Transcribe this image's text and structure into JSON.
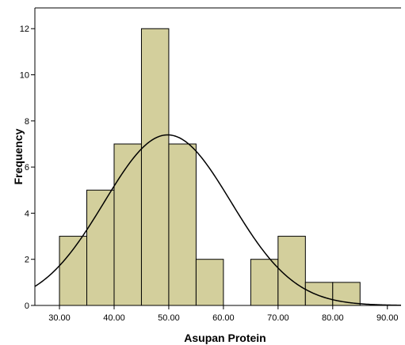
{
  "chart_data": {
    "type": "bar",
    "title": "",
    "xlabel": "Asupan Protein",
    "ylabel": "Frequency",
    "bins": [
      {
        "start": 30,
        "end": 35,
        "count": 3
      },
      {
        "start": 35,
        "end": 40,
        "count": 5
      },
      {
        "start": 40,
        "end": 45,
        "count": 7
      },
      {
        "start": 45,
        "end": 50,
        "count": 12
      },
      {
        "start": 50,
        "end": 55,
        "count": 7
      },
      {
        "start": 55,
        "end": 60,
        "count": 2
      },
      {
        "start": 60,
        "end": 65,
        "count": 0
      },
      {
        "start": 65,
        "end": 70,
        "count": 2
      },
      {
        "start": 70,
        "end": 75,
        "count": 3
      },
      {
        "start": 75,
        "end": 80,
        "count": 1
      },
      {
        "start": 80,
        "end": 85,
        "count": 1
      }
    ],
    "x_ticks": [
      "30.00",
      "40.00",
      "50.00",
      "60.00",
      "70.00",
      "80.00",
      "90.00"
    ],
    "y_ticks": [
      "0",
      "2",
      "4",
      "6",
      "8",
      "10",
      "12"
    ],
    "xlim": [
      25.5,
      92.5
    ],
    "ylim": [
      0,
      12.9
    ],
    "normal_curve": {
      "mean": 49.8,
      "std_dev": 11.6,
      "n": 43,
      "bin_width": 5
    },
    "colors": {
      "bar_fill": "#d3cf9c",
      "bar_stroke": "#000000",
      "curve": "#000000"
    },
    "grid": false,
    "legend": "none"
  }
}
